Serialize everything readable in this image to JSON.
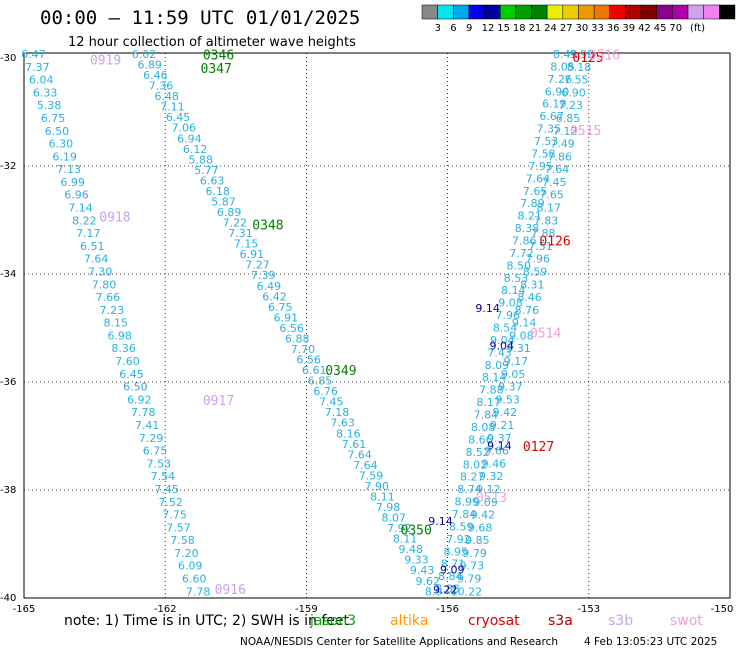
{
  "title": "00:00 – 11:59 UTC 01/01/2025",
  "subtitle": "12 hour collection of altimeter wave heights",
  "colorbar": {
    "colors": [
      "#888888",
      "#00e5ee",
      "#00a8ee",
      "#0000ee",
      "#0000a0",
      "#00cc00",
      "#00a000",
      "#008000",
      "#eeee00",
      "#eecc00",
      "#ee9900",
      "#ee7700",
      "#ee0000",
      "#b00000",
      "#800000",
      "#8b008b",
      "#aa00aa",
      "#d0a0f0",
      "#ee82ee",
      "#000000"
    ],
    "ticks": [
      "3",
      "6",
      "9",
      "12",
      "15",
      "18",
      "21",
      "24",
      "27",
      "30",
      "33",
      "36",
      "39",
      "42",
      "45",
      "70",
      "(ft)"
    ]
  },
  "axes": {
    "lon_ticks": [
      "-165",
      "-162",
      "-159",
      "-156",
      "-153",
      "-150"
    ],
    "lat_ticks": [
      "-30",
      "-32",
      "-34",
      "-36",
      "-38",
      "-40"
    ]
  },
  "tracks": [
    {
      "id": "0919",
      "label_color": "#c8a2f0",
      "label_pos": [
        -163.6,
        -30.05
      ],
      "color": "#2ab0e0",
      "start": [
        -164.8,
        -30.0
      ],
      "end": [
        -161.3,
        -39.95
      ],
      "values": [
        "6.47",
        "7.37",
        "6.04",
        "6.33",
        "5.38",
        "6.75",
        "6.50",
        "6.30",
        "6.19",
        "7.13",
        "6.99",
        "6.96",
        "7.14",
        "8.22",
        "7.17",
        "6.51",
        "7.64",
        "7.30",
        "7.80",
        "7.66",
        "7.23",
        "8.15",
        "6.98",
        "8.36",
        "7.60",
        "6.45",
        "6.50",
        "6.92",
        "7.78",
        "7.41",
        "7.29",
        "6.75",
        "7.53",
        "7.54",
        "7.45",
        "7.52",
        "7.75",
        "7.57",
        "7.58",
        "7.20",
        "6.09",
        "6.60",
        "7.78"
      ]
    },
    {
      "id": "0346",
      "label_color": "#008000",
      "label_pos": [
        -161.2,
        -29.95
      ],
      "color": "#2ab0e0",
      "start": [
        -162.45,
        -30.0
      ],
      "end": [
        -156.3,
        -39.95
      ],
      "values": [
        "6.02",
        "6.89",
        "6.46",
        "7.36",
        "6.48",
        "7.11",
        "6.45",
        "7.06",
        "6.94",
        "6.12",
        "5.88",
        "5.77",
        "6.63",
        "6.18",
        "5.87",
        "6.89",
        "7.22",
        "7.31",
        "7.15",
        "6.91",
        "7.27",
        "7.39",
        "6.49",
        "6.42",
        "6.75",
        "6.91",
        "6.56",
        "6.88",
        "7.70",
        "6.56",
        "6.61",
        "6.85",
        "6.76",
        "7.45",
        "7.18",
        "7.63",
        "8.16",
        "7.61",
        "7.64",
        "7.64",
        "7.59",
        "7.90",
        "8.11",
        "7.98",
        "8.07",
        "7.92",
        "8.11",
        "9.48",
        "9.33",
        "9.43",
        "9.62",
        "8.9"
      ]
    },
    {
      "id": "0126",
      "label_color": "#e00000",
      "label_pos": [
        -154.05,
        -33.4
      ],
      "color": "#2ab0e0",
      "start": [
        -153.5,
        -30.0
      ],
      "end": [
        -156.0,
        -39.9
      ],
      "values": [
        "8.49",
        "8.05",
        "7.26",
        "6.90",
        "6.19",
        "6.67",
        "7.35",
        "7.53",
        "7.58",
        "7.95",
        "7.64",
        "7.65",
        "7.89",
        "8.21",
        "8.38",
        "7.86",
        "7.72",
        "8.50",
        "8.53",
        "8.14",
        "9.08",
        "7.96",
        "8.54",
        "9.04",
        "7.43",
        "8.09",
        "8.14",
        "7.88",
        "8.17",
        "7.84",
        "8.08",
        "8.66",
        "8.52",
        "8.02",
        "8.27",
        "8.74",
        "8.99",
        "7.84",
        "8.59",
        "7.92",
        "8.95",
        "8.71",
        "8.84",
        "8.88"
      ]
    },
    {
      "id": "0515",
      "label_color": "#f0a0d0",
      "label_pos": [
        -153.4,
        -31.35
      ],
      "color": "#2ab0e0",
      "start": [
        -153.15,
        -30.0
      ],
      "end": [
        -155.6,
        -39.95
      ],
      "values": [
        "9.98",
        "8.18",
        "7.55",
        "6.90",
        "7.23",
        "6.85",
        "7.12",
        "7.49",
        "7.86",
        "7.64",
        "7.45",
        "7.65",
        "8.17",
        "7.83",
        "7.88",
        "7.51",
        "7.96",
        "8.59",
        "8.31",
        "8.46",
        "8.76",
        "9.14",
        "9.08",
        "9.31",
        "9.17",
        "9.05",
        "9.37",
        "9.53",
        "9.42",
        "9.21",
        "9.37",
        "9.66",
        "9.46",
        "9.32",
        "9.12",
        "9.09",
        "9.42",
        "9.68",
        "9.85",
        "9.79",
        "9.73",
        "9.79",
        "10.22"
      ]
    }
  ],
  "pass_labels": [
    {
      "text": "0346",
      "color": "#008000",
      "pos": [
        -161.2,
        -29.95
      ]
    },
    {
      "text": "0347",
      "color": "#008000",
      "pos": [
        -161.25,
        -30.2
      ]
    },
    {
      "text": "0348",
      "color": "#008000",
      "pos": [
        -160.15,
        -33.1
      ]
    },
    {
      "text": "0349",
      "color": "#008000",
      "pos": [
        -158.6,
        -35.8
      ]
    },
    {
      "text": "0350",
      "color": "#008000",
      "pos": [
        -157.0,
        -38.75
      ]
    },
    {
      "text": "0919",
      "color": "#c8a2f0",
      "pos": [
        -163.6,
        -30.05
      ]
    },
    {
      "text": "0918",
      "color": "#c8a2f0",
      "pos": [
        -163.4,
        -32.95
      ]
    },
    {
      "text": "0917",
      "color": "#c8a2f0",
      "pos": [
        -161.2,
        -36.35
      ]
    },
    {
      "text": "0916",
      "color": "#c8a2f0",
      "pos": [
        -160.95,
        -39.85
      ]
    },
    {
      "text": "0125",
      "color": "#e00000",
      "pos": [
        -153.35,
        -30.0
      ]
    },
    {
      "text": "0126",
      "color": "#e00000",
      "pos": [
        -154.05,
        -33.4
      ]
    },
    {
      "text": "0127",
      "color": "#e00000",
      "pos": [
        -154.4,
        -37.2
      ]
    },
    {
      "text": "0516",
      "color": "#f0a0d0",
      "pos": [
        -153.0,
        -29.95
      ]
    },
    {
      "text": "0515",
      "color": "#f0a0d0",
      "pos": [
        -153.4,
        -31.35
      ]
    },
    {
      "text": "0514",
      "color": "#f0a0d0",
      "pos": [
        -154.25,
        -35.1
      ]
    },
    {
      "text": "0513",
      "color": "#f0a0d0",
      "pos": [
        -155.4,
        -38.15
      ]
    }
  ],
  "extra_values": [
    {
      "v": "9.14",
      "color": "#0000a0",
      "pos": [
        -156.15,
        -38.65
      ]
    },
    {
      "v": "9.09",
      "color": "#0000a0",
      "pos": [
        -155.9,
        -39.55
      ]
    },
    {
      "v": "9.22",
      "color": "#0000a0",
      "pos": [
        -156.05,
        -39.92
      ]
    },
    {
      "v": "9.04",
      "color": "#0000a0",
      "pos": [
        -154.85,
        -35.4
      ]
    },
    {
      "v": "9.14",
      "color": "#0000a0",
      "pos": [
        -154.9,
        -37.25
      ]
    },
    {
      "v": "9.14",
      "color": "#0000a0",
      "pos": [
        -155.15,
        -34.7
      ]
    }
  ],
  "legend": {
    "note": "note:  1) Time is in UTC;  2) SWH is in feet",
    "sats": [
      {
        "name": "jason3",
        "color": "#00aa00"
      },
      {
        "name": "altika",
        "color": "#ff9900"
      },
      {
        "name": "cryosat",
        "color": "#e00000"
      },
      {
        "name": "s3a",
        "color": "#aa0000"
      },
      {
        "name": "s3b",
        "color": "#c8a2f0"
      },
      {
        "name": "swot",
        "color": "#f0a0d0"
      }
    ]
  },
  "footer": {
    "agency": "NOAA/NESDIS Center for Satellite Applications and Research",
    "timestamp": "4 Feb 13:05:23 UTC 2025"
  }
}
